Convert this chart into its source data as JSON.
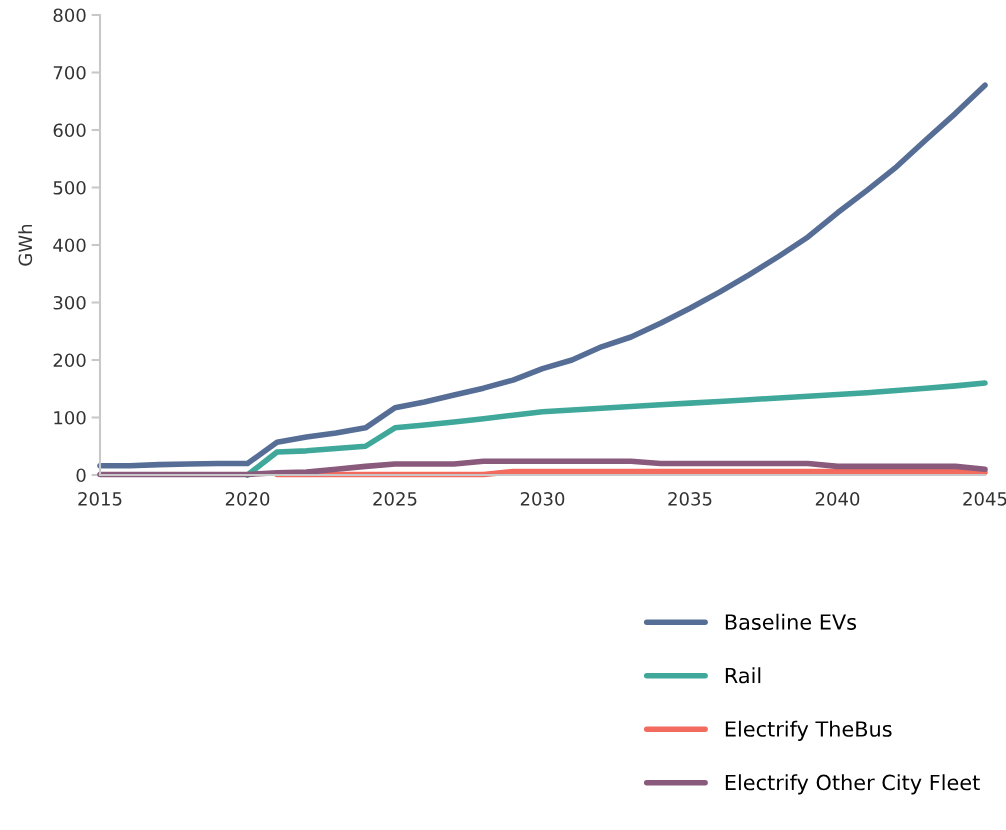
{
  "chart_data": {
    "type": "line",
    "ylabel": "GWh",
    "x": [
      2015,
      2016,
      2017,
      2018,
      2019,
      2020,
      2021,
      2022,
      2023,
      2024,
      2025,
      2026,
      2027,
      2028,
      2029,
      2030,
      2031,
      2032,
      2033,
      2034,
      2035,
      2036,
      2037,
      2038,
      2039,
      2040,
      2041,
      2042,
      2043,
      2044,
      2045
    ],
    "series": [
      {
        "name": "Baseline EVs",
        "color": "#566e96",
        "values": [
          16,
          16,
          18,
          19,
          20,
          20,
          57,
          66,
          73,
          82,
          117,
          127,
          139,
          151,
          165,
          185,
          200,
          223,
          240,
          264,
          290,
          318,
          348,
          380,
          414,
          456,
          495,
          536,
          583,
          629,
          678
        ]
      },
      {
        "name": "Rail",
        "color": "#3fa89a",
        "values": [
          null,
          null,
          null,
          null,
          null,
          0,
          40,
          42,
          46,
          50,
          82,
          87,
          92,
          98,
          104,
          110,
          113,
          116,
          119,
          122,
          125,
          128,
          131,
          134,
          137,
          140,
          143,
          147,
          151,
          155,
          160
        ]
      },
      {
        "name": "Electrify TheBus",
        "color": "#f26b5e",
        "values": [
          null,
          null,
          null,
          null,
          null,
          null,
          1,
          1,
          1,
          1,
          1,
          1,
          1,
          1,
          6,
          6,
          6,
          6,
          6,
          6,
          6,
          6,
          6,
          6,
          6,
          6,
          6,
          6,
          6,
          6,
          5
        ]
      },
      {
        "name": "Electrify Other City Fleet",
        "color": "#8a5a7c",
        "values": [
          1,
          1,
          1,
          1,
          1,
          1,
          4,
          5,
          10,
          15,
          19,
          19,
          19,
          24,
          24,
          24,
          24,
          24,
          24,
          20,
          20,
          20,
          20,
          20,
          20,
          15,
          15,
          15,
          15,
          15,
          10
        ]
      }
    ],
    "xlim": [
      2015,
      2045
    ],
    "xticks": [
      2015,
      2020,
      2025,
      2030,
      2035,
      2040,
      2045
    ],
    "ylim": [
      0,
      800
    ],
    "yticks": [
      0,
      100,
      200,
      300,
      400,
      500,
      600,
      700,
      800
    ],
    "grid": false,
    "legend": "bottom right",
    "marker": "none",
    "line_style": "solid"
  }
}
